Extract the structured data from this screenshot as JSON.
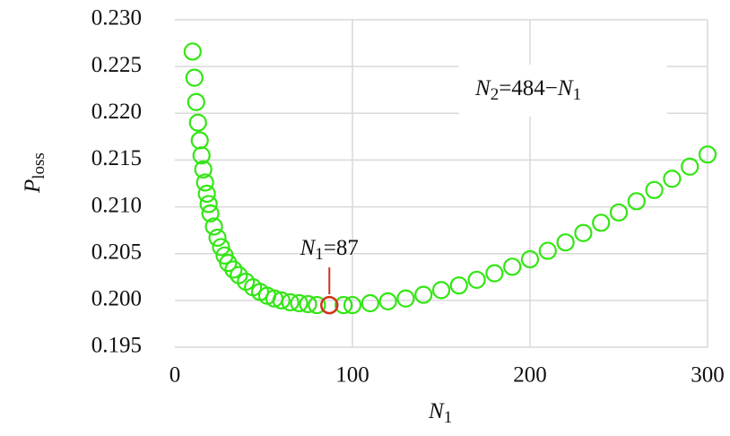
{
  "chart_data": {
    "type": "scatter",
    "x_label": [
      {
        "text": "N",
        "italic": true
      },
      {
        "text": "1",
        "sub": true
      }
    ],
    "y_label": [
      {
        "text": "P",
        "italic": true
      },
      {
        "text": "loss",
        "sub": true
      }
    ],
    "xlim": [
      0,
      300
    ],
    "ylim": [
      0.195,
      0.23
    ],
    "xticks": [
      0,
      100,
      200,
      300
    ],
    "yticks": [
      0.195,
      {
        "value": 0.2,
        "label": "0.200"
      },
      0.205,
      {
        "value": 0.21,
        "label": "0.210"
      },
      0.215,
      {
        "value": 0.22,
        "label": "0.220"
      },
      0.225,
      {
        "value": 0.23,
        "label": "0.230"
      }
    ],
    "grid": true,
    "series": [
      {
        "color": "#33e614",
        "x": [
          10,
          11,
          12,
          13,
          14,
          15,
          16,
          17,
          18,
          19,
          20,
          22,
          24,
          26,
          28,
          30,
          33,
          36,
          40,
          44,
          48,
          52,
          56,
          60,
          65,
          70,
          75,
          80,
          87,
          95,
          100,
          110,
          120,
          130,
          140,
          150,
          160,
          170,
          180,
          190,
          200,
          210,
          220,
          230,
          240,
          250,
          260,
          270,
          280,
          290,
          300
        ],
        "values": [
          0.2266,
          0.2238,
          0.2212,
          0.219,
          0.2171,
          0.2155,
          0.214,
          0.2126,
          0.2114,
          0.2103,
          0.2093,
          0.2079,
          0.2067,
          0.2057,
          0.2048,
          0.204,
          0.2033,
          0.2027,
          0.202,
          0.2014,
          0.2009,
          0.2005,
          0.2002,
          0.2,
          0.1998,
          0.1997,
          0.1996,
          0.1995,
          0.1995,
          0.1995,
          0.1995,
          0.1997,
          0.1999,
          0.2002,
          0.2006,
          0.2011,
          0.2016,
          0.2022,
          0.2029,
          0.2036,
          0.2044,
          0.2053,
          0.2062,
          0.2072,
          0.2083,
          0.2094,
          0.2106,
          0.2118,
          0.213,
          0.2143,
          0.2156
        ]
      }
    ],
    "highlight": {
      "x": 87,
      "y": 0.1995,
      "color": "#d2321e",
      "label": [
        {
          "text": "N",
          "italic": true
        },
        {
          "text": "1",
          "sub": true
        },
        {
          "text": "=87"
        }
      ]
    },
    "annotation": [
      {
        "text": "N",
        "italic": true
      },
      {
        "text": "2",
        "sub": true
      },
      {
        "text": "=484−"
      },
      {
        "text": "N",
        "italic": true
      },
      {
        "text": "1",
        "sub": true
      }
    ]
  }
}
